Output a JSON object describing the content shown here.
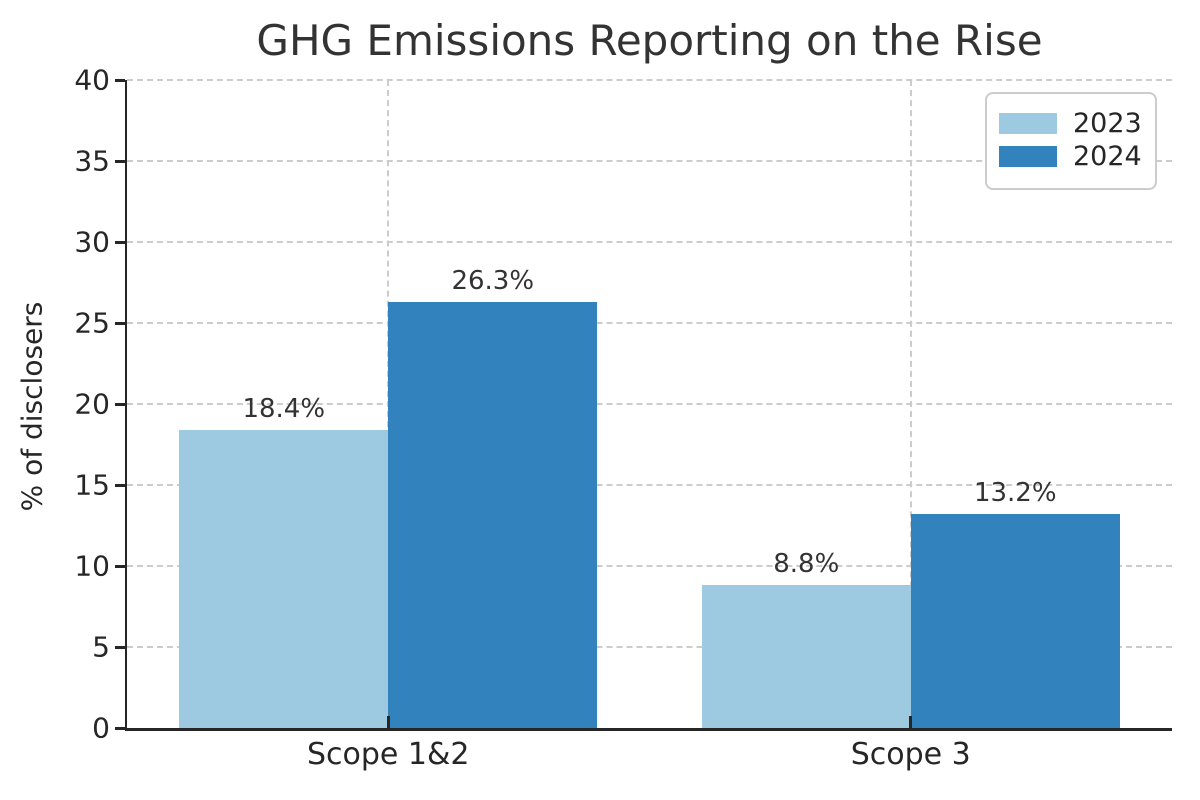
{
  "chart_data": {
    "type": "bar",
    "title": "GHG Emissions Reporting on the Rise",
    "xlabel": "",
    "ylabel": "% of disclosers",
    "categories": [
      "Scope 1&2",
      "Scope 3"
    ],
    "series": [
      {
        "name": "2023",
        "color": "#9ecae1",
        "values": [
          18.4,
          8.8
        ],
        "labels": [
          "18.4%",
          "8.8%"
        ]
      },
      {
        "name": "2024",
        "color": "#3182bd",
        "values": [
          26.3,
          13.2
        ],
        "labels": [
          "26.3%",
          "13.2%"
        ]
      }
    ],
    "ylim": [
      0,
      40
    ],
    "yticks": [
      0,
      5,
      10,
      15,
      20,
      25,
      30,
      35,
      40
    ],
    "bar_width_data_units": 0.4,
    "grid": "dashed-both-axes",
    "legend_position": "top-right",
    "legend_entries": [
      "2023",
      "2024"
    ]
  },
  "colors": {
    "series_2023": "#9ecae1",
    "series_2024": "#3182bd",
    "grid": "#cccccc",
    "spine": "#262626",
    "text": "#333333",
    "background": "#ffffff"
  }
}
